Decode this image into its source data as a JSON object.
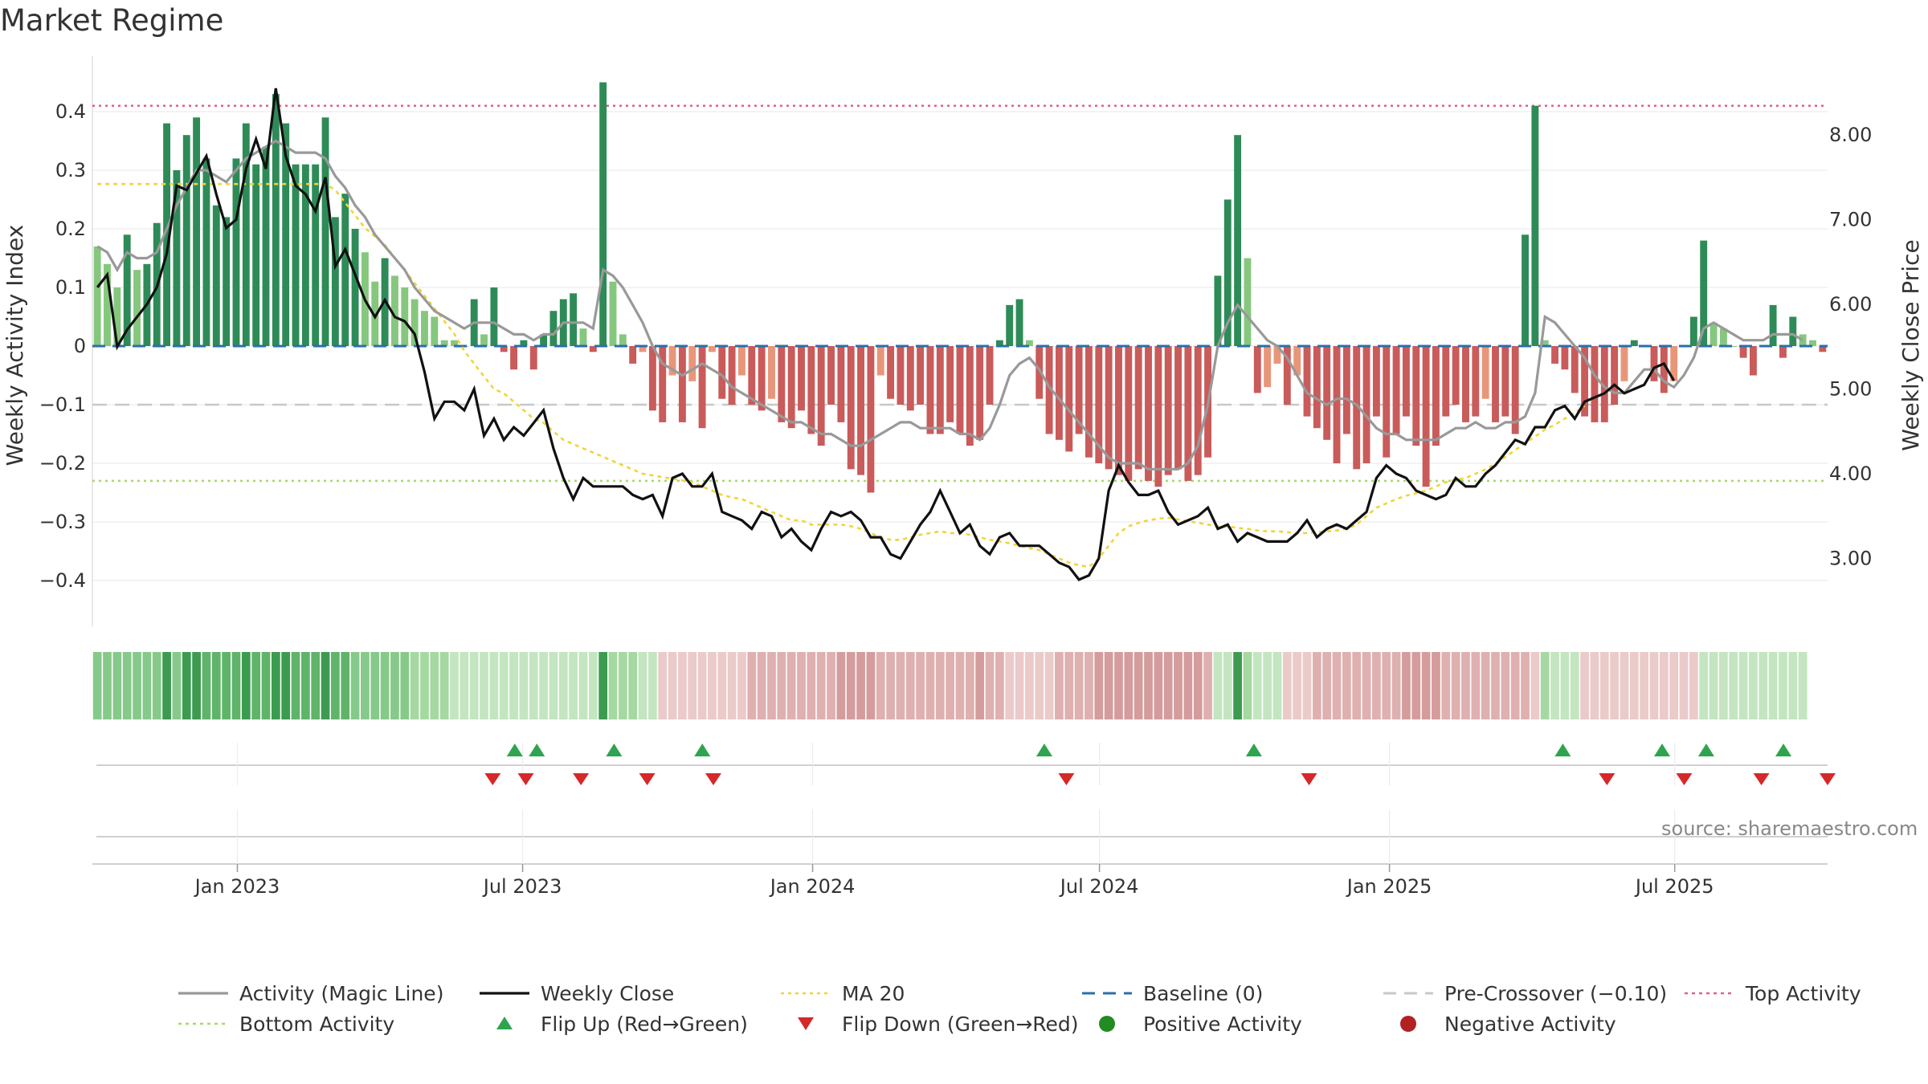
{
  "title": "Market Regime",
  "source": "source: sharemaestro.com",
  "colors": {
    "dark_green": "#2e8b57",
    "light_green": "#86c77e",
    "dark_red": "#c95b5b",
    "light_red": "#e8967a",
    "magic_line": "#999999",
    "close": "#111111",
    "ma20": "#f0d53a",
    "baseline": "#2b6fa8",
    "precross": "#c8c8c8",
    "top": "#e0608a",
    "bottom": "#a8d86a",
    "flip_up": "#2ea44f",
    "flip_down": "#d62828",
    "pos_dot": "#228b22",
    "neg_dot": "#b22222"
  },
  "chart_data": {
    "type": "bar+line",
    "title": "Market Regime",
    "x_start": "2022-10-01",
    "x_end": "2025-10-06",
    "x_ticks": [
      "Jan 2023",
      "Jul 2023",
      "Jan 2024",
      "Jul 2024",
      "Jan 2025",
      "Jul 2025"
    ],
    "left_axis": {
      "label": "Weekly Activity Index",
      "ylim": [
        -0.48,
        0.48
      ],
      "ticks": [
        "0.4",
        "0.3",
        "0.2",
        "0.1",
        "0",
        "−0.1",
        "−0.2",
        "−0.3",
        "−0.4"
      ],
      "tick_values": [
        0.4,
        0.3,
        0.2,
        0.1,
        0,
        -0.1,
        -0.2,
        -0.3,
        -0.4
      ]
    },
    "right_axis": {
      "label": "Weekly Close Price",
      "ylim": [
        2.2,
        8.9
      ],
      "ticks": [
        "8.00",
        "7.00",
        "6.00",
        "5.00",
        "4.00",
        "3.00"
      ],
      "tick_values": [
        8,
        7,
        6,
        5,
        4,
        3
      ]
    },
    "reference_lines": {
      "top_activity": 0.41,
      "bottom_activity": -0.23,
      "pre_crossover": -0.1,
      "baseline": 0
    },
    "activity_bars": [
      0.17,
      0.14,
      0.1,
      0.19,
      0.13,
      0.14,
      0.21,
      0.38,
      0.3,
      0.36,
      0.39,
      0.32,
      0.24,
      0.22,
      0.32,
      0.38,
      0.31,
      0.34,
      0.43,
      0.38,
      0.31,
      0.31,
      0.31,
      0.39,
      0.22,
      0.26,
      0.2,
      0.16,
      0.11,
      0.15,
      0.12,
      0.1,
      0.08,
      0.06,
      0.05,
      0.01,
      0.01,
      0.0,
      0.08,
      0.02,
      0.1,
      -0.01,
      -0.04,
      0.01,
      -0.04,
      0.02,
      0.06,
      0.08,
      0.09,
      0.03,
      -0.01,
      0.45,
      0.11,
      0.02,
      -0.03,
      -0.01,
      -0.11,
      -0.13,
      -0.05,
      -0.13,
      -0.06,
      -0.14,
      -0.01,
      -0.09,
      -0.1,
      -0.05,
      -0.1,
      -0.11,
      -0.09,
      -0.13,
      -0.14,
      -0.11,
      -0.15,
      -0.17,
      -0.1,
      -0.13,
      -0.21,
      -0.22,
      -0.25,
      -0.05,
      -0.09,
      -0.1,
      -0.11,
      -0.1,
      -0.15,
      -0.15,
      -0.13,
      -0.15,
      -0.17,
      -0.16,
      -0.1,
      0.01,
      0.07,
      0.08,
      0.01,
      -0.09,
      -0.15,
      -0.16,
      -0.18,
      -0.15,
      -0.19,
      -0.2,
      -0.21,
      -0.22,
      -0.23,
      -0.21,
      -0.23,
      -0.24,
      -0.22,
      -0.21,
      -0.23,
      -0.22,
      -0.19,
      0.12,
      0.25,
      0.36,
      0.15,
      -0.08,
      -0.07,
      -0.03,
      -0.1,
      -0.05,
      -0.12,
      -0.14,
      -0.16,
      -0.2,
      -0.15,
      -0.21,
      -0.2,
      -0.12,
      -0.19,
      -0.15,
      -0.12,
      -0.17,
      -0.24,
      -0.17,
      -0.12,
      -0.1,
      -0.13,
      -0.12,
      -0.09,
      -0.13,
      -0.12,
      -0.15,
      0.19,
      0.41,
      0.01,
      -0.03,
      -0.04,
      -0.08,
      -0.12,
      -0.13,
      -0.13,
      -0.1,
      -0.06,
      0.01,
      0.0,
      -0.06,
      -0.08,
      -0.06,
      0.0,
      0.05,
      0.18,
      0.04,
      0.03,
      0.0,
      -0.02,
      -0.05,
      0.0,
      0.07,
      -0.02,
      0.05,
      0.02,
      0.01,
      -0.01
    ],
    "magic_line": [
      0.17,
      0.16,
      0.13,
      0.16,
      0.15,
      0.15,
      0.16,
      0.2,
      0.24,
      0.27,
      0.3,
      0.3,
      0.29,
      0.28,
      0.3,
      0.32,
      0.33,
      0.34,
      0.35,
      0.34,
      0.33,
      0.33,
      0.33,
      0.32,
      0.29,
      0.27,
      0.24,
      0.22,
      0.19,
      0.17,
      0.15,
      0.13,
      0.1,
      0.08,
      0.06,
      0.05,
      0.04,
      0.03,
      0.04,
      0.04,
      0.04,
      0.03,
      0.02,
      0.02,
      0.01,
      0.02,
      0.02,
      0.04,
      0.04,
      0.04,
      0.03,
      0.13,
      0.12,
      0.1,
      0.07,
      0.04,
      0.0,
      -0.03,
      -0.04,
      -0.05,
      -0.04,
      -0.03,
      -0.04,
      -0.05,
      -0.07,
      -0.08,
      -0.09,
      -0.1,
      -0.11,
      -0.12,
      -0.13,
      -0.13,
      -0.14,
      -0.15,
      -0.15,
      -0.16,
      -0.17,
      -0.17,
      -0.16,
      -0.15,
      -0.14,
      -0.13,
      -0.13,
      -0.14,
      -0.14,
      -0.14,
      -0.14,
      -0.15,
      -0.15,
      -0.16,
      -0.14,
      -0.1,
      -0.05,
      -0.03,
      -0.02,
      -0.04,
      -0.07,
      -0.09,
      -0.11,
      -0.13,
      -0.15,
      -0.17,
      -0.19,
      -0.2,
      -0.2,
      -0.2,
      -0.21,
      -0.21,
      -0.21,
      -0.21,
      -0.2,
      -0.17,
      -0.1,
      0.0,
      0.04,
      0.07,
      0.05,
      0.03,
      0.01,
      0.0,
      -0.02,
      -0.05,
      -0.08,
      -0.09,
      -0.1,
      -0.09,
      -0.09,
      -0.1,
      -0.12,
      -0.14,
      -0.15,
      -0.15,
      -0.16,
      -0.16,
      -0.16,
      -0.16,
      -0.15,
      -0.14,
      -0.14,
      -0.13,
      -0.14,
      -0.14,
      -0.13,
      -0.13,
      -0.12,
      -0.08,
      0.05,
      0.04,
      0.02,
      0.0,
      -0.02,
      -0.05,
      -0.07,
      -0.08,
      -0.08,
      -0.06,
      -0.04,
      -0.04,
      -0.06,
      -0.07,
      -0.05,
      -0.02,
      0.03,
      0.04,
      0.03,
      0.02,
      0.01,
      0.01,
      0.01,
      0.02,
      0.02,
      0.02,
      0.01
    ],
    "weekly_close": [
      6.2,
      6.35,
      5.5,
      5.7,
      5.85,
      6.0,
      6.2,
      6.6,
      7.4,
      7.35,
      7.55,
      7.75,
      7.3,
      6.9,
      7.0,
      7.6,
      7.95,
      7.6,
      8.55,
      7.75,
      7.4,
      7.3,
      7.1,
      7.5,
      6.45,
      6.65,
      6.35,
      6.05,
      5.85,
      6.05,
      5.85,
      5.8,
      5.65,
      5.2,
      4.65,
      4.85,
      4.85,
      4.75,
      5.0,
      4.45,
      4.65,
      4.4,
      4.55,
      4.45,
      4.6,
      4.75,
      4.3,
      3.95,
      3.7,
      3.95,
      3.85,
      3.85,
      3.85,
      3.85,
      3.75,
      3.7,
      3.75,
      3.5,
      3.95,
      4.0,
      3.85,
      3.85,
      4.0,
      3.55,
      3.5,
      3.45,
      3.35,
      3.55,
      3.5,
      3.25,
      3.35,
      3.2,
      3.1,
      3.35,
      3.55,
      3.5,
      3.55,
      3.45,
      3.25,
      3.25,
      3.05,
      3.0,
      3.2,
      3.4,
      3.55,
      3.8,
      3.55,
      3.3,
      3.4,
      3.15,
      3.05,
      3.25,
      3.3,
      3.15,
      3.15,
      3.15,
      3.05,
      2.95,
      2.9,
      2.75,
      2.8,
      3.0,
      3.8,
      4.1,
      3.9,
      3.75,
      3.75,
      3.8,
      3.55,
      3.4,
      3.45,
      3.5,
      3.6,
      3.35,
      3.4,
      3.2,
      3.3,
      3.25,
      3.2,
      3.2,
      3.2,
      3.3,
      3.45,
      3.25,
      3.35,
      3.4,
      3.35,
      3.45,
      3.55,
      3.95,
      4.1,
      4.0,
      3.95,
      3.8,
      3.75,
      3.7,
      3.75,
      3.95,
      3.85,
      3.85,
      4.0,
      4.1,
      4.25,
      4.4,
      4.35,
      4.55,
      4.55,
      4.75,
      4.8,
      4.65,
      4.85,
      4.9,
      4.95,
      5.05,
      4.95,
      5.0,
      5.05,
      5.25,
      5.3,
      5.1
    ],
    "ma20": [
      7.42,
      7.42,
      7.42,
      7.42,
      7.42,
      7.42,
      7.42,
      7.42,
      7.42,
      7.42,
      7.42,
      7.42,
      7.42,
      7.42,
      7.42,
      7.42,
      7.42,
      7.42,
      7.42,
      7.42,
      7.42,
      7.42,
      7.42,
      7.42,
      7.35,
      7.2,
      7.05,
      6.9,
      6.8,
      6.7,
      6.55,
      6.4,
      6.25,
      6.1,
      5.95,
      5.8,
      5.65,
      5.45,
      5.3,
      5.15,
      5.0,
      4.95,
      4.85,
      4.75,
      4.65,
      4.6,
      4.5,
      4.4,
      4.35,
      4.3,
      4.25,
      4.2,
      4.15,
      4.1,
      4.05,
      4.0,
      3.98,
      3.96,
      3.94,
      3.92,
      3.9,
      3.85,
      3.8,
      3.75,
      3.72,
      3.7,
      3.65,
      3.6,
      3.55,
      3.5,
      3.45,
      3.45,
      3.4,
      3.4,
      3.4,
      3.4,
      3.38,
      3.35,
      3.3,
      3.25,
      3.22,
      3.22,
      3.25,
      3.28,
      3.3,
      3.32,
      3.3,
      3.3,
      3.28,
      3.25,
      3.22,
      3.2,
      3.18,
      3.15,
      3.12,
      3.1,
      3.05,
      3.0,
      2.95,
      2.92,
      2.9,
      3.0,
      3.15,
      3.3,
      3.38,
      3.42,
      3.45,
      3.47,
      3.48,
      3.46,
      3.44,
      3.42,
      3.4,
      3.38,
      3.38,
      3.36,
      3.35,
      3.33,
      3.32,
      3.32,
      3.31,
      3.3,
      3.3,
      3.31,
      3.32,
      3.33,
      3.35,
      3.4,
      3.5,
      3.6,
      3.65,
      3.7,
      3.74,
      3.77,
      3.8,
      3.85,
      3.9,
      3.93,
      3.95,
      4.0,
      4.05,
      4.12,
      4.2,
      4.28,
      4.36,
      4.44,
      4.52,
      4.58,
      4.65,
      4.72,
      4.8
    ],
    "flip_up": [
      "2023-06-26",
      "2023-07-10",
      "2023-08-28",
      "2023-10-23",
      "2024-05-27",
      "2024-10-07",
      "2025-04-21",
      "2025-06-23",
      "2025-07-21",
      "2025-09-08"
    ],
    "flip_down": [
      "2023-06-12",
      "2023-07-03",
      "2023-08-07",
      "2023-09-18",
      "2023-10-30",
      "2024-06-10",
      "2024-11-11",
      "2025-05-19",
      "2025-07-07",
      "2025-08-25",
      "2025-10-06"
    ],
    "legend": [
      {
        "label": "Activity (Magic Line)",
        "kind": "line",
        "color": "#999999"
      },
      {
        "label": "Weekly Close",
        "kind": "line",
        "color": "#111111"
      },
      {
        "label": "MA 20",
        "kind": "dotted",
        "color": "#f0d53a"
      },
      {
        "label": "Baseline (0)",
        "kind": "dashed",
        "color": "#2b6fa8"
      },
      {
        "label": "Pre-Crossover (−0.10)",
        "kind": "dashed",
        "color": "#c8c8c8"
      },
      {
        "label": "Top Activity",
        "kind": "dotted",
        "color": "#e0608a"
      },
      {
        "label": "Bottom Activity",
        "kind": "dotted",
        "color": "#a8d86a"
      },
      {
        "label": "Flip Up (Red→Green)",
        "kind": "up",
        "color": "#2ea44f"
      },
      {
        "label": "Flip Down (Green→Red)",
        "kind": "down",
        "color": "#d62828"
      },
      {
        "label": "Positive Activity",
        "kind": "dot",
        "color": "#228b22"
      },
      {
        "label": "Negative Activity",
        "kind": "dot",
        "color": "#b22222"
      }
    ]
  }
}
